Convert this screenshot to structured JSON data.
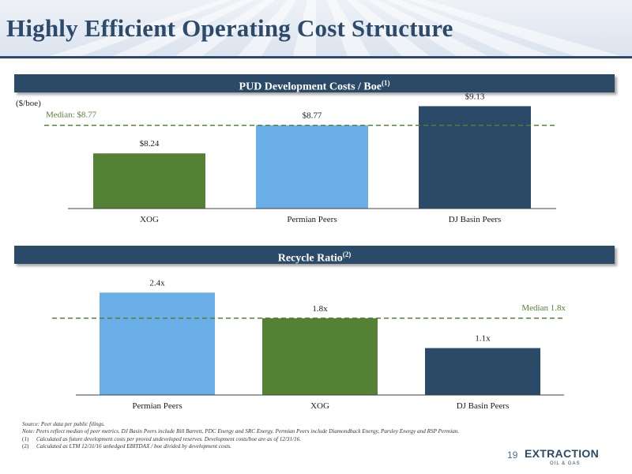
{
  "header": {
    "title": "Highly Efficient Operating Cost Structure"
  },
  "banner1": {
    "label": "PUD Development Costs / Boe",
    "sup": "(1)"
  },
  "banner2": {
    "label": "Recycle Ratio",
    "sup": "(2)"
  },
  "unit_label": "($/boe)",
  "chart_data": [
    {
      "type": "bar",
      "categories": [
        "XOG",
        "Permian Peers",
        "DJ Basin Peers"
      ],
      "values": [
        8.24,
        8.77,
        9.13
      ],
      "value_labels": [
        "$8.24",
        "$8.77",
        "$9.13"
      ],
      "colors": [
        "#548235",
        "#6aaee8",
        "#2b4a68"
      ],
      "median": {
        "value": 8.77,
        "label": "Median: $8.77",
        "position": "left"
      },
      "ylim": [
        7.2,
        9.3
      ],
      "ylabel": "($/boe)"
    },
    {
      "type": "bar",
      "categories": [
        "Permian Peers",
        "XOG",
        "DJ Basin Peers"
      ],
      "values": [
        2.4,
        1.8,
        1.1
      ],
      "value_labels": [
        "2.4x",
        "1.8x",
        "1.1x"
      ],
      "colors": [
        "#6aaee8",
        "#548235",
        "#2b4a68"
      ],
      "median": {
        "value": 1.8,
        "label": "Median 1.8x",
        "position": "right"
      },
      "ylim": [
        0,
        2.5
      ]
    }
  ],
  "footnotes": [
    {
      "label": "",
      "text": "Source: Peer data per public filings."
    },
    {
      "label": "",
      "text": "Note: Peers reflect median of peer metrics. DJ Basin Peers include Bill Barrett, PDC Energy and SRC Energy. Permian Peers include Diamondback Energy, Parsley Energy and RSP Permian."
    },
    {
      "label": "(1)",
      "text": "Calculated as future development costs per proved undeveloped reserves. Development costs/boe are as of 12/31/16."
    },
    {
      "label": "(2)",
      "text": "Calculated as LTM 12/31/16 unhedged EBITDAX / boe divided by development costs."
    }
  ],
  "page_number": "19",
  "logo": {
    "text": "EXTRACTION",
    "sub": "OIL & GAS"
  },
  "colors": {
    "navy": "#2b4a68",
    "green": "#548235",
    "lightblue": "#6aaee8",
    "median_line": "#548235"
  }
}
